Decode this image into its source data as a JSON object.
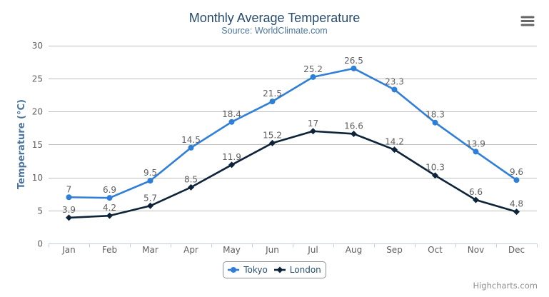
{
  "chart_data": {
    "type": "line",
    "title": "Monthly Average Temperature",
    "subtitle": "Source: WorldClimate.com",
    "categories": [
      "Jan",
      "Feb",
      "Mar",
      "Apr",
      "May",
      "Jun",
      "Jul",
      "Aug",
      "Sep",
      "Oct",
      "Nov",
      "Dec"
    ],
    "series": [
      {
        "name": "Tokyo",
        "marker": "circle",
        "color": "#2f7ed8",
        "values": [
          7,
          6.9,
          9.5,
          14.5,
          18.4,
          21.5,
          25.2,
          26.5,
          23.3,
          18.3,
          13.9,
          9.6
        ]
      },
      {
        "name": "London",
        "marker": "diamond",
        "color": "#0d233a",
        "values": [
          3.9,
          4.2,
          5.7,
          8.5,
          11.9,
          15.2,
          17,
          16.6,
          14.2,
          10.3,
          6.6,
          4.8
        ]
      }
    ],
    "xlabel": "",
    "ylabel": "Temperature (°C)",
    "ylim": [
      0,
      30
    ],
    "ytick_interval": 5,
    "yticks": [
      0,
      5,
      10,
      15,
      20,
      25,
      30
    ],
    "grid": true,
    "data_labels": true,
    "legend_position": "bottom-center"
  },
  "colors": {
    "title": "#274b6d",
    "subtitle": "#4d759e",
    "axis_title": "#4d759e",
    "axis_labels": "#606060",
    "data_labels": "#606060",
    "grid_line": "#c0c0c0",
    "axis_line": "#c0d0e0",
    "legend_text": "#274b6d",
    "legend_border": "#909090",
    "credits": "#909090",
    "menu_icon": "#666666",
    "background": "#ffffff"
  },
  "credits": {
    "label": "Highcharts.com"
  },
  "menu": {
    "icon": "hamburger-icon"
  }
}
